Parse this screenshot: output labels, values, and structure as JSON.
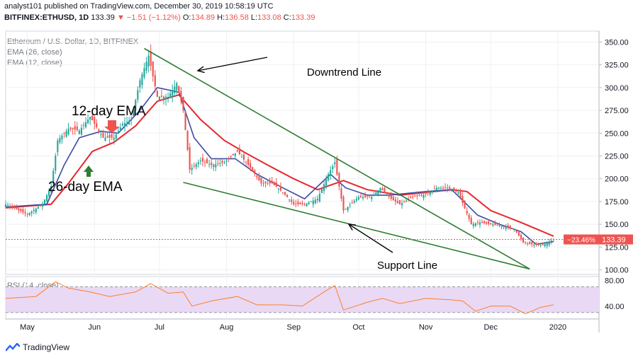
{
  "header": {
    "line1": "analyst101 published on TradingView.com, December 30, 2019 10:58:19 UTC",
    "symbol": "BITFINEX:ETHUSD, 1D",
    "last": "133.39",
    "arrow": "▼",
    "change": "−1.51 (−1.12%)",
    "o_label": "O:",
    "o": "134.89",
    "h_label": "H:",
    "h": "136.58",
    "l_label": "L:",
    "l": "133.08",
    "c_label": "C:",
    "c": "133.39"
  },
  "legend": {
    "title": "Ethereum / U.S. Dollar, 1D, BITFINEX",
    "ema26": "EMA (26, close)",
    "ema12": "EMA (12, close)",
    "rsi": "RSI (14, close)"
  },
  "annotations": {
    "downtrend": "Downtrend Line",
    "support": "Support Line",
    "ema12": "12-day EMA",
    "ema26": "26-day EMA"
  },
  "price_tag": {
    "pct": "−23.46%",
    "value": "133.39"
  },
  "brand": "TradingView",
  "colors": {
    "up": "#26a69a",
    "down": "#ef5350",
    "ema26": "#e8262d",
    "ema12": "#3b4ba3",
    "trend": "#2e7d32",
    "rsi": "#ff7f2a",
    "rsi_band": "#e9d9f5",
    "price_tag": "#ef5350"
  },
  "chart_data": [
    {
      "type": "candlestick",
      "title": "Ethereum / U.S. Dollar, 1D, BITFINEX",
      "x_ticks": [
        "May",
        "Jun",
        "Jul",
        "Aug",
        "Sep",
        "Oct",
        "Nov",
        "Dec",
        "2020"
      ],
      "y_ticks": [
        100,
        125,
        150,
        175,
        200,
        225,
        250,
        275,
        300,
        325,
        350
      ],
      "y_tick_labels": [
        "100.00",
        "125.00",
        "150.00",
        "175.00",
        "200.00",
        "225.00",
        "250.00",
        "275.00",
        "300.00",
        "325.00",
        "350.00"
      ],
      "ylim": [
        95,
        362
      ],
      "series": [
        {
          "name": "ETHUSD",
          "points": [
            [
              "2019-04-21",
              172
            ],
            [
              "2019-05-01",
              161
            ],
            [
              "2019-05-08",
              172
            ],
            [
              "2019-05-12",
              192
            ],
            [
              "2019-05-15",
              242
            ],
            [
              "2019-05-20",
              255
            ],
            [
              "2019-05-25",
              253
            ],
            [
              "2019-05-30",
              268
            ],
            [
              "2019-06-05",
              245
            ],
            [
              "2019-06-10",
              245
            ],
            [
              "2019-06-14",
              260
            ],
            [
              "2019-06-18",
              265
            ],
            [
              "2019-06-22",
              308
            ],
            [
              "2019-06-26",
              335
            ],
            [
              "2019-06-30",
              290
            ],
            [
              "2019-07-05",
              290
            ],
            [
              "2019-07-09",
              305
            ],
            [
              "2019-07-12",
              275
            ],
            [
              "2019-07-15",
              210
            ],
            [
              "2019-07-20",
              220
            ],
            [
              "2019-07-25",
              215
            ],
            [
              "2019-07-31",
              218
            ],
            [
              "2019-08-06",
              230
            ],
            [
              "2019-08-12",
              212
            ],
            [
              "2019-08-17",
              195
            ],
            [
              "2019-08-22",
              195
            ],
            [
              "2019-08-27",
              185
            ],
            [
              "2019-09-01",
              172
            ],
            [
              "2019-09-06",
              172
            ],
            [
              "2019-09-12",
              178
            ],
            [
              "2019-09-17",
              205
            ],
            [
              "2019-09-20",
              218
            ],
            [
              "2019-09-24",
              165
            ],
            [
              "2019-10-01",
              180
            ],
            [
              "2019-10-07",
              180
            ],
            [
              "2019-10-11",
              190
            ],
            [
              "2019-10-16",
              178
            ],
            [
              "2019-10-20",
              172
            ],
            [
              "2019-10-26",
              180
            ],
            [
              "2019-11-01",
              183
            ],
            [
              "2019-11-06",
              190
            ],
            [
              "2019-11-11",
              190
            ],
            [
              "2019-11-16",
              185
            ],
            [
              "2019-11-22",
              150
            ],
            [
              "2019-11-26",
              152
            ],
            [
              "2019-12-01",
              150
            ],
            [
              "2019-12-06",
              148
            ],
            [
              "2019-12-12",
              145
            ],
            [
              "2019-12-16",
              130
            ],
            [
              "2019-12-20",
              128
            ],
            [
              "2019-12-25",
              127
            ],
            [
              "2019-12-30",
              133.39
            ]
          ]
        },
        {
          "name": "EMA (26, close)",
          "points": [
            [
              "2019-04-21",
              168
            ],
            [
              "2019-05-12",
              172
            ],
            [
              "2019-05-20",
              195
            ],
            [
              "2019-05-31",
              230
            ],
            [
              "2019-06-10",
              240
            ],
            [
              "2019-06-20",
              258
            ],
            [
              "2019-06-30",
              285
            ],
            [
              "2019-07-10",
              292
            ],
            [
              "2019-07-20",
              265
            ],
            [
              "2019-07-31",
              242
            ],
            [
              "2019-08-10",
              228
            ],
            [
              "2019-08-20",
              215
            ],
            [
              "2019-09-01",
              200
            ],
            [
              "2019-09-12",
              188
            ],
            [
              "2019-09-24",
              198
            ],
            [
              "2019-10-05",
              188
            ],
            [
              "2019-10-20",
              182
            ],
            [
              "2019-11-01",
              185
            ],
            [
              "2019-11-13",
              188
            ],
            [
              "2019-11-20",
              186
            ],
            [
              "2019-12-01",
              165
            ],
            [
              "2019-12-15",
              152
            ],
            [
              "2019-12-30",
              137
            ]
          ]
        },
        {
          "name": "EMA (12, close)",
          "points": [
            [
              "2019-04-21",
              169
            ],
            [
              "2019-05-10",
              172
            ],
            [
              "2019-05-18",
              215
            ],
            [
              "2019-05-25",
              245
            ],
            [
              "2019-06-04",
              252
            ],
            [
              "2019-06-12",
              250
            ],
            [
              "2019-06-22",
              275
            ],
            [
              "2019-06-30",
              300
            ],
            [
              "2019-07-10",
              295
            ],
            [
              "2019-07-17",
              245
            ],
            [
              "2019-07-25",
              222
            ],
            [
              "2019-08-05",
              222
            ],
            [
              "2019-08-15",
              205
            ],
            [
              "2019-08-27",
              190
            ],
            [
              "2019-09-06",
              178
            ],
            [
              "2019-09-18",
              205
            ],
            [
              "2019-09-25",
              190
            ],
            [
              "2019-10-05",
              182
            ],
            [
              "2019-10-15",
              182
            ],
            [
              "2019-11-01",
              186
            ],
            [
              "2019-11-13",
              188
            ],
            [
              "2019-11-25",
              160
            ],
            [
              "2019-12-05",
              150
            ],
            [
              "2019-12-15",
              142
            ],
            [
              "2019-12-22",
              128
            ],
            [
              "2019-12-30",
              131
            ]
          ]
        },
        {
          "name": "Downtrend Line",
          "points": [
            [
              "2019-06-24",
              343
            ],
            [
              "2019-12-19",
              101
            ]
          ]
        },
        {
          "name": "Support Line",
          "points": [
            [
              "2019-07-12",
              196
            ],
            [
              "2019-12-19",
              101
            ]
          ]
        }
      ],
      "last_price": 133.39
    },
    {
      "type": "line",
      "title": "RSI (14, close)",
      "y_ticks": [
        40,
        80
      ],
      "y_tick_labels": [
        "40.00",
        "80.00"
      ],
      "ylim": [
        20,
        86
      ],
      "band": [
        30,
        70
      ],
      "series": [
        {
          "name": "RSI (14, close)",
          "points": [
            [
              "2019-04-21",
              52
            ],
            [
              "2019-05-05",
              55
            ],
            [
              "2019-05-14",
              78
            ],
            [
              "2019-05-20",
              68
            ],
            [
              "2019-05-30",
              62
            ],
            [
              "2019-06-08",
              55
            ],
            [
              "2019-06-20",
              62
            ],
            [
              "2019-06-27",
              75
            ],
            [
              "2019-07-05",
              60
            ],
            [
              "2019-07-12",
              62
            ],
            [
              "2019-07-16",
              40
            ],
            [
              "2019-07-25",
              48
            ],
            [
              "2019-08-06",
              55
            ],
            [
              "2019-08-15",
              42
            ],
            [
              "2019-08-27",
              42
            ],
            [
              "2019-09-05",
              40
            ],
            [
              "2019-09-15",
              62
            ],
            [
              "2019-09-20",
              72
            ],
            [
              "2019-09-24",
              34
            ],
            [
              "2019-10-05",
              46
            ],
            [
              "2019-10-12",
              52
            ],
            [
              "2019-10-20",
              44
            ],
            [
              "2019-11-01",
              52
            ],
            [
              "2019-11-12",
              50
            ],
            [
              "2019-11-18",
              48
            ],
            [
              "2019-11-24",
              32
            ],
            [
              "2019-12-01",
              40
            ],
            [
              "2019-12-10",
              40
            ],
            [
              "2019-12-17",
              28
            ],
            [
              "2019-12-24",
              38
            ],
            [
              "2019-12-30",
              42
            ]
          ]
        }
      ]
    }
  ]
}
